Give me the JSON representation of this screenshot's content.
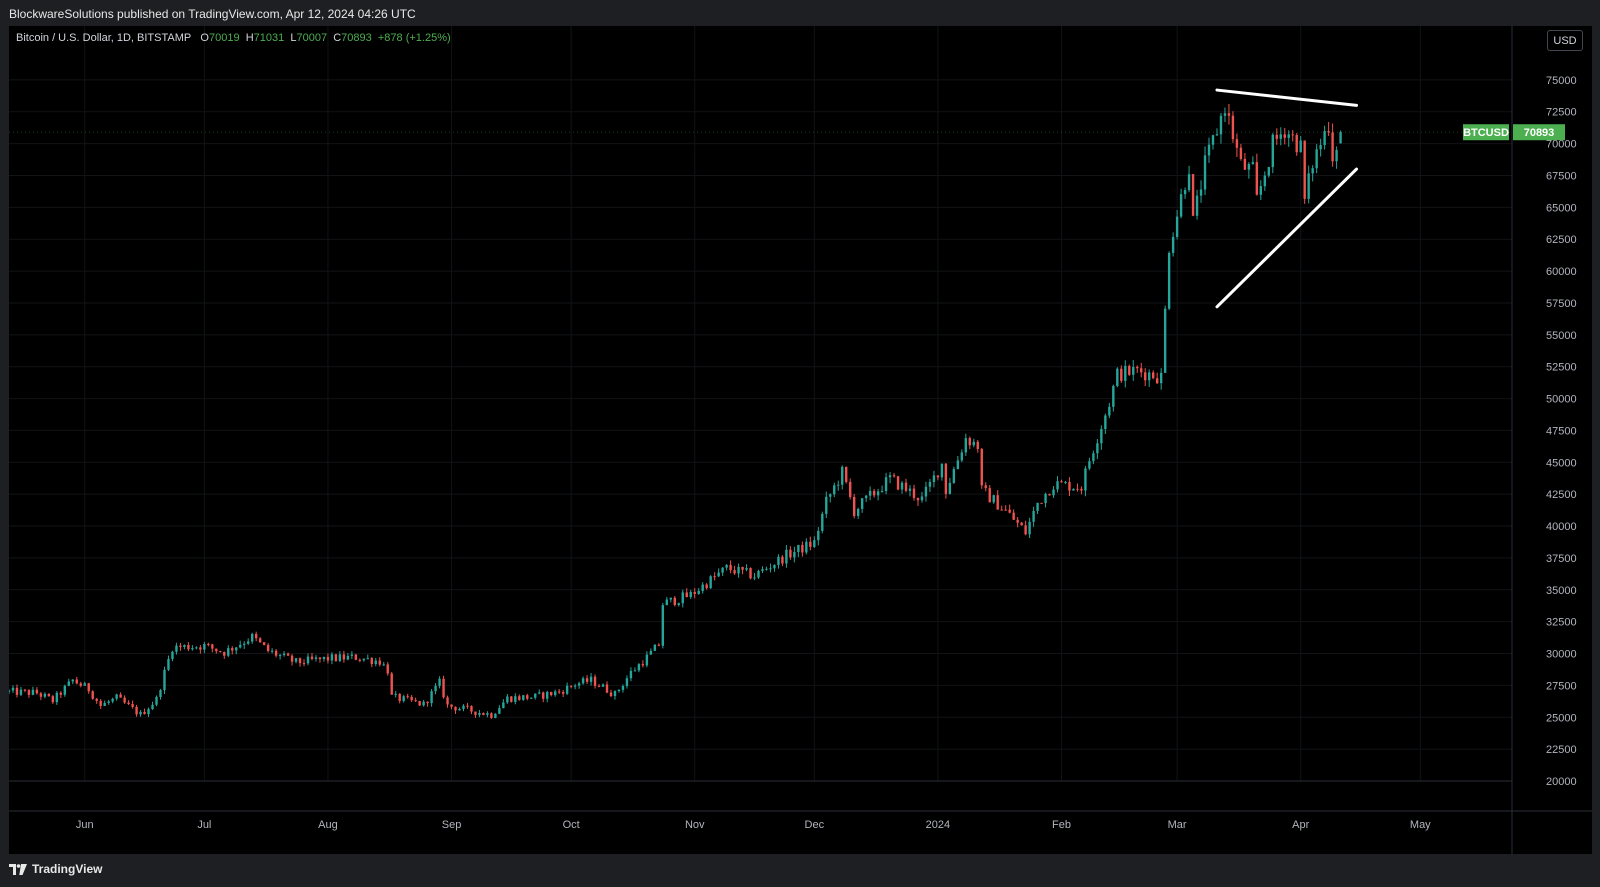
{
  "publisher": "BlockwareSolutions published on TradingView.com, Apr 12, 2024 04:26 UTC",
  "legend": {
    "symbol": "Bitcoin / U.S. Dollar, 1D, BITSTAMP",
    "o_label": "O",
    "o": "70019",
    "h_label": "H",
    "h": "71031",
    "l_label": "L",
    "l": "70007",
    "c_label": "C",
    "c": "70893",
    "change": "+878 (+1.25%)"
  },
  "currency_button": "USD",
  "price_tag": {
    "symbol": "BTCUSD",
    "value": "70893"
  },
  "footer_brand": "TradingView",
  "colors": {
    "up": "#26a69a",
    "down": "#ef5350",
    "tag": "#4caf50",
    "trendline": "#ffffff"
  },
  "chart_data": {
    "type": "candlestick",
    "title": "Bitcoin / U.S. Dollar, 1D, BITSTAMP",
    "ylim": [
      20000,
      77500
    ],
    "y_ticks": [
      20000,
      22500,
      25000,
      27500,
      30000,
      32500,
      35000,
      37500,
      40000,
      42500,
      45000,
      47500,
      50000,
      52500,
      55000,
      57500,
      60000,
      62500,
      65000,
      67500,
      70000,
      72500,
      75000
    ],
    "x_ticks": [
      {
        "label": "Jun",
        "date": "2023-06-01"
      },
      {
        "label": "Jul",
        "date": "2023-07-01"
      },
      {
        "label": "Aug",
        "date": "2023-08-01"
      },
      {
        "label": "Sep",
        "date": "2023-09-01"
      },
      {
        "label": "Oct",
        "date": "2023-10-01"
      },
      {
        "label": "Nov",
        "date": "2023-11-01"
      },
      {
        "label": "Dec",
        "date": "2023-12-01"
      },
      {
        "label": "2024",
        "date": "2024-01-01"
      },
      {
        "label": "Feb",
        "date": "2024-02-01"
      },
      {
        "label": "Mar",
        "date": "2024-03-01"
      },
      {
        "label": "Apr",
        "date": "2024-04-01"
      },
      {
        "label": "May",
        "date": "2024-05-01"
      }
    ],
    "x_range": [
      "2023-05-13",
      "2024-05-24"
    ],
    "closes": [
      {
        "date": "2023-05-13",
        "close": 27000
      },
      {
        "date": "2023-05-20",
        "close": 26900
      },
      {
        "date": "2023-05-24",
        "close": 26300
      },
      {
        "date": "2023-05-29",
        "close": 27900
      },
      {
        "date": "2023-06-02",
        "close": 27200
      },
      {
        "date": "2023-06-05",
        "close": 25900
      },
      {
        "date": "2023-06-09",
        "close": 26500
      },
      {
        "date": "2023-06-15",
        "close": 25200
      },
      {
        "date": "2023-06-19",
        "close": 26400
      },
      {
        "date": "2023-06-21",
        "close": 28500
      },
      {
        "date": "2023-06-23",
        "close": 30500
      },
      {
        "date": "2023-07-01",
        "close": 30600
      },
      {
        "date": "2023-07-06",
        "close": 30100
      },
      {
        "date": "2023-07-13",
        "close": 31300
      },
      {
        "date": "2023-07-17",
        "close": 30200
      },
      {
        "date": "2023-07-24",
        "close": 29300
      },
      {
        "date": "2023-08-01",
        "close": 29600
      },
      {
        "date": "2023-08-08",
        "close": 29700
      },
      {
        "date": "2023-08-14",
        "close": 29400
      },
      {
        "date": "2023-08-16",
        "close": 28700
      },
      {
        "date": "2023-08-17",
        "close": 26600
      },
      {
        "date": "2023-08-25",
        "close": 26000
      },
      {
        "date": "2023-08-29",
        "close": 27700
      },
      {
        "date": "2023-08-31",
        "close": 25900
      },
      {
        "date": "2023-09-11",
        "close": 25200
      },
      {
        "date": "2023-09-15",
        "close": 26500
      },
      {
        "date": "2023-09-22",
        "close": 26600
      },
      {
        "date": "2023-09-28",
        "close": 27000
      },
      {
        "date": "2023-10-02",
        "close": 27600
      },
      {
        "date": "2023-10-06",
        "close": 27900
      },
      {
        "date": "2023-10-12",
        "close": 26800
      },
      {
        "date": "2023-10-16",
        "close": 28500
      },
      {
        "date": "2023-10-20",
        "close": 29700
      },
      {
        "date": "2023-10-23",
        "close": 30700
      },
      {
        "date": "2023-10-24",
        "close": 33900
      },
      {
        "date": "2023-10-31",
        "close": 34600
      },
      {
        "date": "2023-11-09",
        "close": 36700
      },
      {
        "date": "2023-11-16",
        "close": 36100
      },
      {
        "date": "2023-11-24",
        "close": 37700
      },
      {
        "date": "2023-12-01",
        "close": 38700
      },
      {
        "date": "2023-12-04",
        "close": 41900
      },
      {
        "date": "2023-12-08",
        "close": 44200
      },
      {
        "date": "2023-12-11",
        "close": 41200
      },
      {
        "date": "2023-12-20",
        "close": 43700
      },
      {
        "date": "2023-12-28",
        "close": 42100
      },
      {
        "date": "2024-01-02",
        "close": 44900
      },
      {
        "date": "2024-01-03",
        "close": 42800
      },
      {
        "date": "2024-01-08",
        "close": 46900
      },
      {
        "date": "2024-01-11",
        "close": 46300
      },
      {
        "date": "2024-01-12",
        "close": 42800
      },
      {
        "date": "2024-01-18",
        "close": 41200
      },
      {
        "date": "2024-01-23",
        "close": 39500
      },
      {
        "date": "2024-01-26",
        "close": 41800
      },
      {
        "date": "2024-01-30",
        "close": 43300
      },
      {
        "date": "2024-02-06",
        "close": 43100
      },
      {
        "date": "2024-02-08",
        "close": 45200
      },
      {
        "date": "2024-02-13",
        "close": 49700
      },
      {
        "date": "2024-02-15",
        "close": 51900
      },
      {
        "date": "2024-02-20",
        "close": 52200
      },
      {
        "date": "2024-02-26",
        "close": 51700
      },
      {
        "date": "2024-02-27",
        "close": 56900
      },
      {
        "date": "2024-02-28",
        "close": 62000
      },
      {
        "date": "2024-03-04",
        "close": 68300
      },
      {
        "date": "2024-03-05",
        "close": 63800
      },
      {
        "date": "2024-03-08",
        "close": 68300
      },
      {
        "date": "2024-03-13",
        "close": 73000
      },
      {
        "date": "2024-03-17",
        "close": 68300
      },
      {
        "date": "2024-03-20",
        "close": 67800
      },
      {
        "date": "2024-03-21",
        "close": 65500
      },
      {
        "date": "2024-03-25",
        "close": 69900
      },
      {
        "date": "2024-03-28",
        "close": 71200
      },
      {
        "date": "2024-04-01",
        "close": 69700
      },
      {
        "date": "2024-04-02",
        "close": 65500
      },
      {
        "date": "2024-04-04",
        "close": 68500
      },
      {
        "date": "2024-04-08",
        "close": 71600
      },
      {
        "date": "2024-04-09",
        "close": 69100
      },
      {
        "date": "2024-04-11",
        "close": 70893
      }
    ],
    "trendlines": [
      {
        "from": {
          "date": "2024-03-11",
          "price": 74200
        },
        "to": {
          "date": "2024-04-15",
          "price": 73000
        }
      },
      {
        "from": {
          "date": "2024-03-11",
          "price": 57200
        },
        "to": {
          "date": "2024-04-15",
          "price": 68000
        }
      }
    ]
  }
}
